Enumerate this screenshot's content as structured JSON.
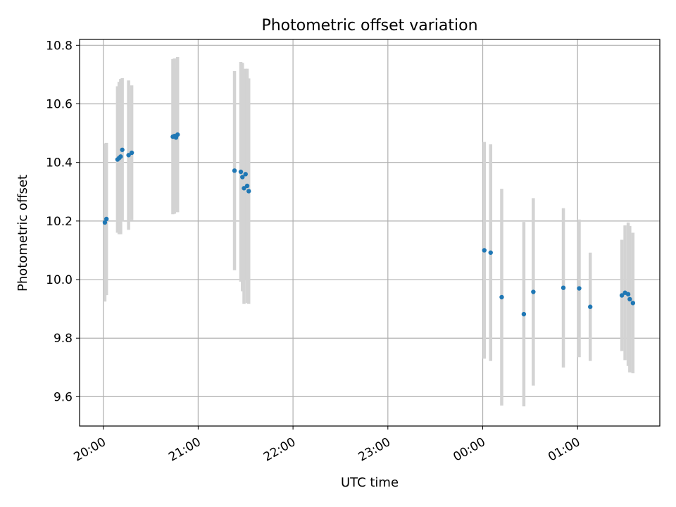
{
  "chart_data": {
    "type": "scatter",
    "title": "Photometric offset variation",
    "xlabel": "UTC time",
    "ylabel": "Photometric offset",
    "xlim": [
      "19:45",
      "01:52"
    ],
    "ylim": [
      9.5,
      10.82
    ],
    "grid": true,
    "x_ticks": [
      "20:00",
      "21:00",
      "22:00",
      "23:00",
      "00:00",
      "01:00"
    ],
    "y_ticks": [
      "9.6",
      "9.8",
      "10.0",
      "10.2",
      "10.4",
      "10.6",
      "10.8"
    ],
    "y_tick_values": [
      9.6,
      9.8,
      10.0,
      10.2,
      10.4,
      10.6,
      10.8
    ],
    "marker_color": "#1f77b4",
    "errorbar_color": "#d3d3d3",
    "series": [
      {
        "points": [
          {
            "x": "20:01",
            "y": 10.195,
            "err": 0.27
          },
          {
            "x": "20:02",
            "y": 10.207,
            "err": 0.26
          },
          {
            "x": "20:09",
            "y": 10.41,
            "err": 0.25
          },
          {
            "x": "20:10",
            "y": 10.415,
            "err": 0.26
          },
          {
            "x": "20:11",
            "y": 10.42,
            "err": 0.265
          },
          {
            "x": "20:12",
            "y": 10.443,
            "err": 0.245
          },
          {
            "x": "20:16",
            "y": 10.425,
            "err": 0.255
          },
          {
            "x": "20:18",
            "y": 10.433,
            "err": 0.23
          },
          {
            "x": "20:44",
            "y": 10.488,
            "err": 0.265
          },
          {
            "x": "20:45",
            "y": 10.49,
            "err": 0.265
          },
          {
            "x": "20:46",
            "y": 10.485,
            "err": 0.24
          },
          {
            "x": "20:47",
            "y": 10.495,
            "err": 0.265
          },
          {
            "x": "21:23",
            "y": 10.372,
            "err": 0.34
          },
          {
            "x": "21:27",
            "y": 10.368,
            "err": 0.375
          },
          {
            "x": "21:28",
            "y": 10.35,
            "err": 0.39
          },
          {
            "x": "21:29",
            "y": 10.312,
            "err": 0.395
          },
          {
            "x": "21:30",
            "y": 10.36,
            "err": 0.36
          },
          {
            "x": "21:31",
            "y": 10.32,
            "err": 0.4
          },
          {
            "x": "21:32",
            "y": 10.302,
            "err": 0.385
          },
          {
            "x": "00:01",
            "y": 10.1,
            "err": 0.37
          },
          {
            "x": "00:05",
            "y": 10.092,
            "err": 0.37
          },
          {
            "x": "00:12",
            "y": 9.94,
            "err": 0.37
          },
          {
            "x": "00:26",
            "y": 9.882,
            "err": 0.315
          },
          {
            "x": "00:32",
            "y": 9.958,
            "err": 0.32
          },
          {
            "x": "00:51",
            "y": 9.972,
            "err": 0.272
          },
          {
            "x": "01:01",
            "y": 9.97,
            "err": 0.235
          },
          {
            "x": "01:08",
            "y": 9.907,
            "err": 0.185
          },
          {
            "x": "01:28",
            "y": 9.946,
            "err": 0.19
          },
          {
            "x": "01:30",
            "y": 9.955,
            "err": 0.23
          },
          {
            "x": "01:32",
            "y": 9.95,
            "err": 0.245
          },
          {
            "x": "01:33",
            "y": 9.933,
            "err": 0.25
          },
          {
            "x": "01:35",
            "y": 9.92,
            "err": 0.24
          }
        ]
      }
    ]
  }
}
